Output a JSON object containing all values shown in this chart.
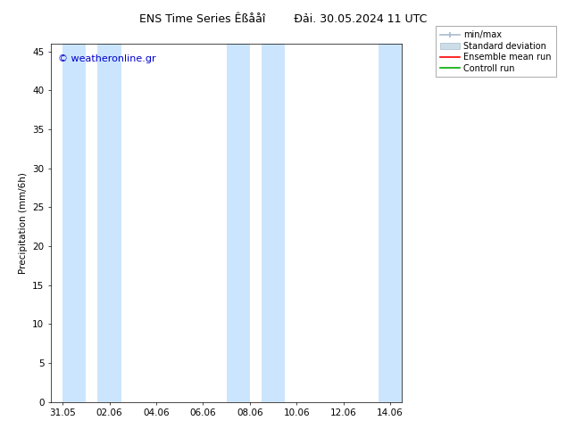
{
  "title": "ENS Time Series Êßååî        Đải. 30.05.2024 11 UTC",
  "ylabel": "Precipitation (mm/6h)",
  "watermark": "© weatheronline.gr",
  "watermark_color": "#0000cc",
  "bg_color": "#ffffff",
  "plot_bg_color": "#ffffff",
  "shaded_band_color": "#cce5ff",
  "ylim": [
    0,
    46
  ],
  "yticks": [
    0,
    5,
    10,
    15,
    20,
    25,
    30,
    35,
    40,
    45
  ],
  "xlim": [
    0,
    15
  ],
  "xtick_labels": [
    "31.05",
    "02.06",
    "04.06",
    "06.06",
    "08.06",
    "10.06",
    "12.06",
    "14.06"
  ],
  "xtick_positions": [
    0.5,
    2.5,
    4.5,
    6.5,
    8.5,
    10.5,
    12.5,
    14.5
  ],
  "shaded_bands": [
    {
      "xstart": 0.5,
      "xend": 1.5
    },
    {
      "xstart": 2.0,
      "xend": 3.0
    },
    {
      "xstart": 7.5,
      "xend": 8.5
    },
    {
      "xstart": 9.0,
      "xend": 10.0
    },
    {
      "xstart": 14.0,
      "xend": 15.0
    }
  ],
  "legend_entries": [
    {
      "label": "min/max",
      "color": "#aabbcc",
      "type": "minmax"
    },
    {
      "label": "Standard deviation",
      "color": "#ccdde8",
      "type": "band"
    },
    {
      "label": "Ensemble mean run",
      "color": "#ff0000",
      "type": "line"
    },
    {
      "label": "Controll run",
      "color": "#00aa00",
      "type": "line"
    }
  ],
  "title_fontsize": 9,
  "axis_fontsize": 7.5,
  "tick_fontsize": 7.5,
  "legend_fontsize": 7,
  "watermark_fontsize": 8
}
